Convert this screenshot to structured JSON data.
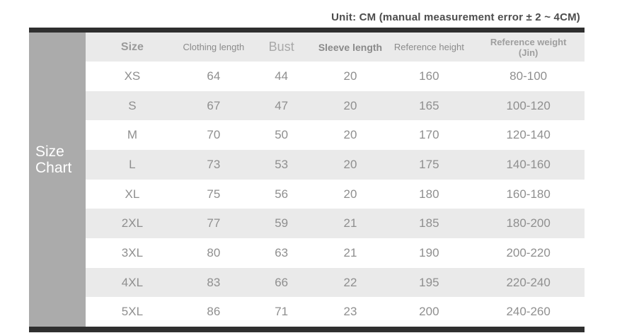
{
  "unit_note": "Unit: CM (manual measurement error ± 2 ~ 4CM)",
  "sidebar": {
    "label_line1": "Size",
    "label_line2": "Chart"
  },
  "table": {
    "columns": [
      {
        "label": "Size"
      },
      {
        "label": "Clothing length"
      },
      {
        "label": "Bust"
      },
      {
        "label": "Sleeve length"
      },
      {
        "label": "Reference height"
      },
      {
        "label": "Reference weight",
        "sub": "(Jin)"
      }
    ],
    "rows": [
      [
        "XS",
        "64",
        "44",
        "20",
        "160",
        "80-100"
      ],
      [
        "S",
        "67",
        "47",
        "20",
        "165",
        "100-120"
      ],
      [
        "M",
        "70",
        "50",
        "20",
        "170",
        "120-140"
      ],
      [
        "L",
        "73",
        "53",
        "20",
        "175",
        "140-160"
      ],
      [
        "XL",
        "75",
        "56",
        "20",
        "180",
        "160-180"
      ],
      [
        "2XL",
        "77",
        "59",
        "21",
        "185",
        "180-200"
      ],
      [
        "3XL",
        "80",
        "63",
        "21",
        "190",
        "200-220"
      ],
      [
        "4XL",
        "83",
        "66",
        "22",
        "195",
        "220-240"
      ],
      [
        "5XL",
        "86",
        "71",
        "23",
        "200",
        "240-260"
      ]
    ]
  },
  "colors": {
    "bar": "#2f2f2f",
    "sidebar": "#ababab",
    "row_alt": "#eaeaea",
    "header_bg": "#eaeaea",
    "data_text": "#8f8f8f",
    "note_text": "#4d4d4d",
    "sidebar_text": "#ffffff"
  },
  "chart_data": {
    "type": "table",
    "title": "Size Chart",
    "unit_note": "Unit: CM (manual measurement error ± 2 ~ 4CM)",
    "columns": [
      "Size",
      "Clothing length",
      "Bust",
      "Sleeve length",
      "Reference height",
      "Reference weight (Jin)"
    ],
    "rows": [
      [
        "XS",
        64,
        44,
        20,
        160,
        "80-100"
      ],
      [
        "S",
        67,
        47,
        20,
        165,
        "100-120"
      ],
      [
        "M",
        70,
        50,
        20,
        170,
        "120-140"
      ],
      [
        "L",
        73,
        53,
        20,
        175,
        "140-160"
      ],
      [
        "XL",
        75,
        56,
        20,
        180,
        "160-180"
      ],
      [
        "2XL",
        77,
        59,
        21,
        185,
        "180-200"
      ],
      [
        "3XL",
        80,
        63,
        21,
        190,
        "200-220"
      ],
      [
        "4XL",
        83,
        66,
        22,
        195,
        "220-240"
      ],
      [
        "5XL",
        86,
        71,
        23,
        200,
        "240-260"
      ]
    ]
  }
}
